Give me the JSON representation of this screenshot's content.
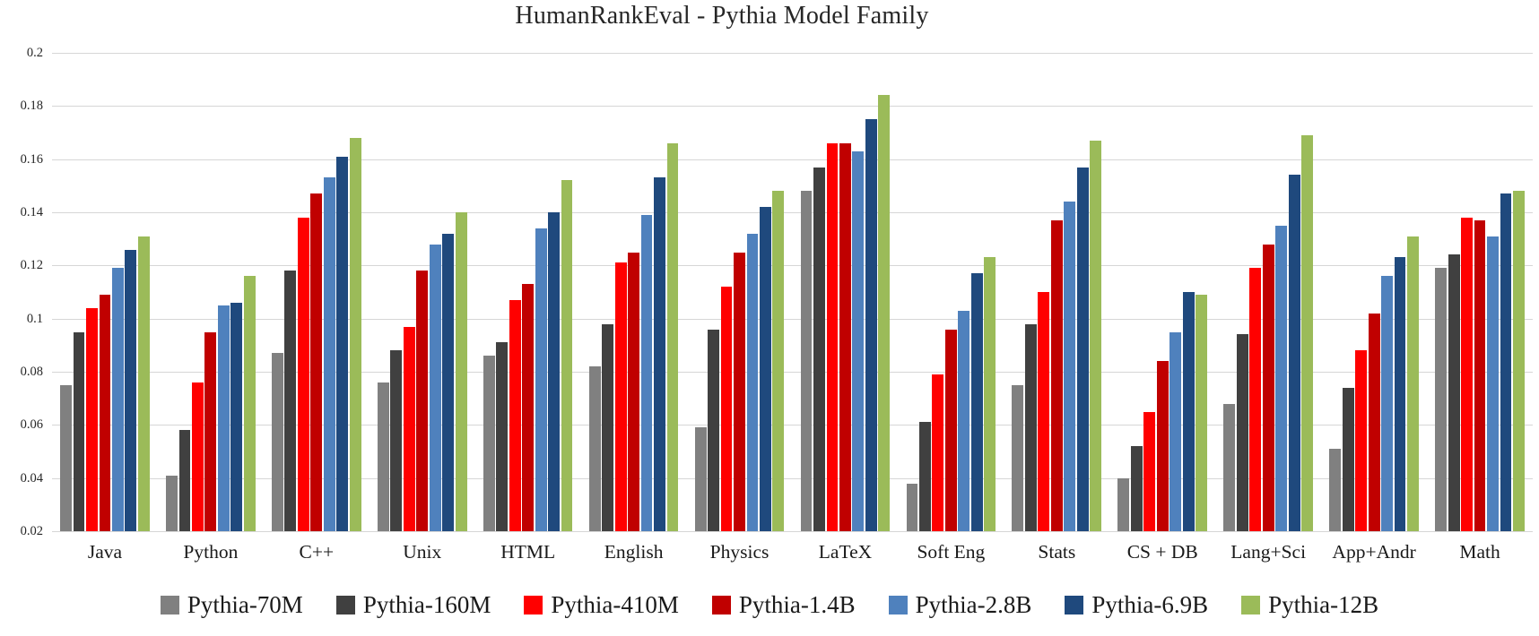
{
  "chart_data": {
    "type": "bar",
    "title": "HumanRankEval - Pythia Model Family",
    "xlabel": "",
    "ylabel": "",
    "ylim": [
      0.02,
      0.2
    ],
    "ytick_step": 0.02,
    "yticks": [
      "0.2",
      "0.18",
      "0.16",
      "0.14",
      "0.12",
      "0.1",
      "0.08",
      "0.06",
      "0.04",
      "0.02"
    ],
    "grid": "horizontal",
    "gridline_color": "#d6d6d6",
    "legend_position": "bottom",
    "categories": [
      "Java",
      "Python",
      "C++",
      "Unix",
      "HTML",
      "English",
      "Physics",
      "LaTeX",
      "Soft Eng",
      "Stats",
      "CS + DB",
      "Lang+Sci",
      "App+Andr",
      "Math"
    ],
    "series": [
      {
        "name": "Pythia-70M",
        "color": "#808080",
        "values": [
          0.075,
          0.041,
          0.087,
          0.076,
          0.086,
          0.082,
          0.059,
          0.148,
          0.038,
          0.075,
          0.04,
          0.068,
          0.051,
          0.119
        ]
      },
      {
        "name": "Pythia-160M",
        "color": "#404040",
        "values": [
          0.095,
          0.058,
          0.118,
          0.088,
          0.091,
          0.098,
          0.096,
          0.157,
          0.061,
          0.098,
          0.052,
          0.094,
          0.074,
          0.124
        ]
      },
      {
        "name": "Pythia-410M",
        "color": "#ff0000",
        "values": [
          0.104,
          0.076,
          0.138,
          0.097,
          0.107,
          0.121,
          0.112,
          0.166,
          0.079,
          0.11,
          0.065,
          0.119,
          0.088,
          0.138
        ]
      },
      {
        "name": "Pythia-1.4B",
        "color": "#c00000",
        "values": [
          0.109,
          0.095,
          0.147,
          0.118,
          0.113,
          0.125,
          0.125,
          0.166,
          0.096,
          0.137,
          0.084,
          0.128,
          0.102,
          0.137
        ]
      },
      {
        "name": "Pythia-2.8B",
        "color": "#4f81bd",
        "values": [
          0.119,
          0.105,
          0.153,
          0.128,
          0.134,
          0.139,
          0.132,
          0.163,
          0.103,
          0.144,
          0.095,
          0.135,
          0.116,
          0.131
        ]
      },
      {
        "name": "Pythia-6.9B",
        "color": "#1f497d",
        "values": [
          0.126,
          0.106,
          0.161,
          0.132,
          0.14,
          0.153,
          0.142,
          0.175,
          0.117,
          0.157,
          0.11,
          0.154,
          0.123,
          0.147
        ]
      },
      {
        "name": "Pythia-12B",
        "color": "#9bbb59",
        "values": [
          0.131,
          0.116,
          0.168,
          0.14,
          0.152,
          0.166,
          0.148,
          0.184,
          0.123,
          0.167,
          0.109,
          0.169,
          0.131,
          0.148
        ]
      }
    ]
  }
}
